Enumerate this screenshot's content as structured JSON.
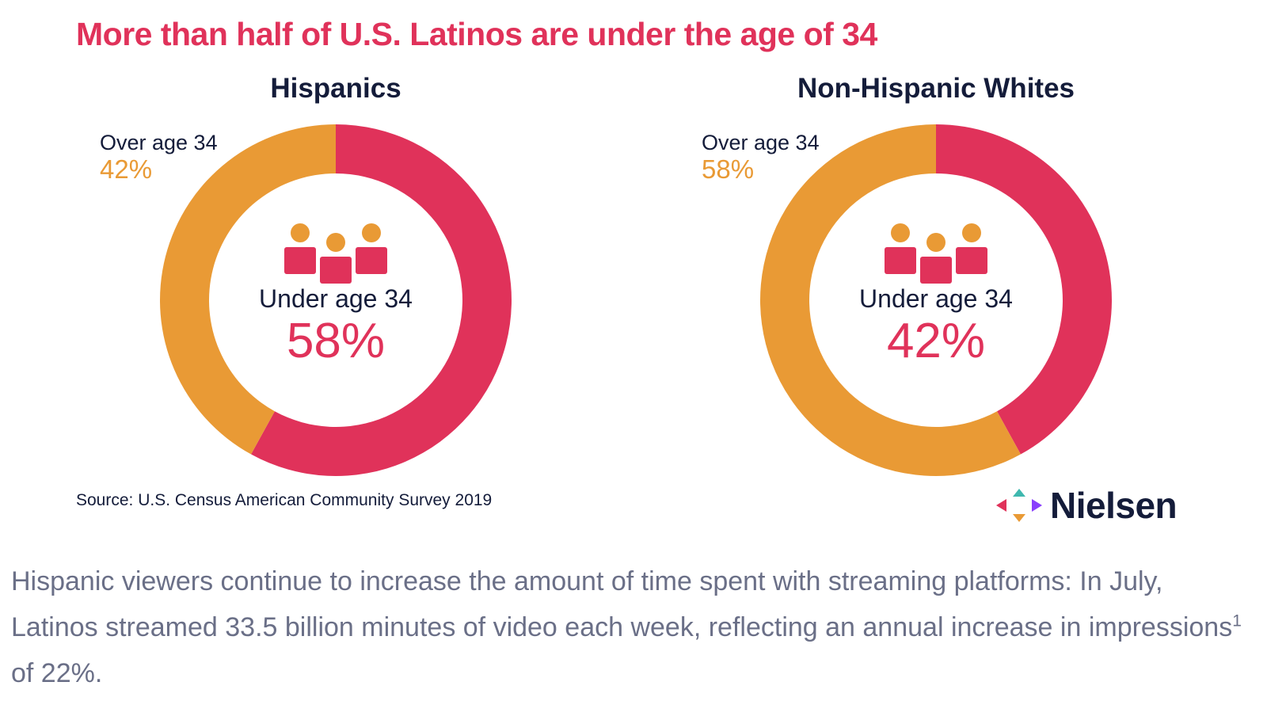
{
  "headline": "More than half of U.S. Latinos are under the age of 34",
  "chart_data": [
    {
      "type": "pie",
      "title": "Hispanics",
      "categories": [
        "Under age 34",
        "Over age 34"
      ],
      "values": [
        58,
        42
      ],
      "unit": "%",
      "colors": [
        "#e0325a",
        "#e99a35"
      ]
    },
    {
      "type": "pie",
      "title": "Non-Hispanic Whites",
      "categories": [
        "Under age 34",
        "Over age 34"
      ],
      "values": [
        42,
        58
      ],
      "unit": "%",
      "colors": [
        "#e0325a",
        "#e99a35"
      ]
    }
  ],
  "labels": {
    "left": {
      "over_label": "Over age 34",
      "over_pct": "42%",
      "under_label": "Under age 34",
      "under_pct": "58%"
    },
    "right": {
      "over_label": "Over age 34",
      "over_pct": "58%",
      "under_label": "Under age 34",
      "under_pct": "42%"
    }
  },
  "source": "Source: U.S. Census American Community Survey 2019",
  "brand": {
    "name": "Nielsen",
    "logo_colors": [
      "#e0325a",
      "#e99a35",
      "#3fb8af",
      "#8a3ffc"
    ]
  },
  "caption": {
    "text_before": "Hispanic viewers continue to increase the amount of time spent with streaming platforms: In July, Latinos streamed 33.5 billion minutes of video each week, reflecting an annual increase in impressions",
    "footnote": "1",
    "text_after": " of 22%."
  },
  "colors": {
    "accent_red": "#e0325a",
    "accent_orange": "#e99a35",
    "navy": "#141c3a",
    "caption_gray": "#6a6f87"
  }
}
